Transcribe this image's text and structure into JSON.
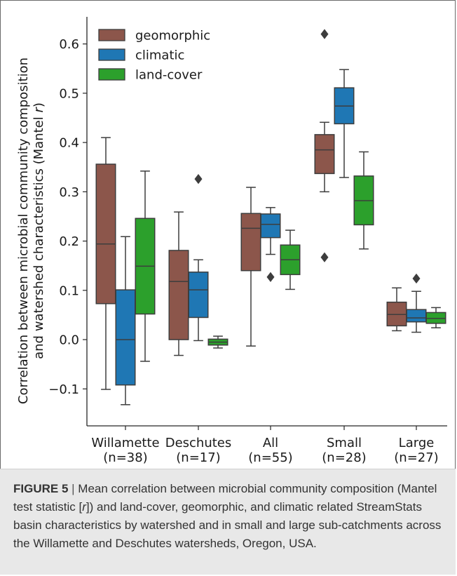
{
  "chart_data": {
    "type": "box",
    "ylabel_line1": "Correlation between microbial community composition",
    "ylabel_line2_prefix": "and watershed characteristics (Mantel ",
    "ylabel_line2_var": "r",
    "ylabel_line2_suffix": ")",
    "ylim": [
      -0.175,
      0.655
    ],
    "yticks": [
      -0.1,
      0.0,
      0.1,
      0.2,
      0.3,
      0.4,
      0.5,
      0.6
    ],
    "ytick_labels": [
      "−0.1",
      "0.0",
      "0.1",
      "0.2",
      "0.3",
      "0.4",
      "0.5",
      "0.6"
    ],
    "categories": [
      "Willamette",
      "Deschutes",
      "All",
      "Small",
      "Large"
    ],
    "category_counts": [
      "(n=38)",
      "(n=17)",
      "(n=55)",
      "(n=28)",
      "(n=27)"
    ],
    "legend_position": "top-left",
    "series": [
      {
        "name": "geomorphic",
        "color": "#8c564b",
        "boxes": [
          {
            "whislo": -0.101,
            "q1": 0.073,
            "med": 0.194,
            "q3": 0.356,
            "whishi": 0.41,
            "fliers": []
          },
          {
            "whislo": -0.032,
            "q1": 0.0,
            "med": 0.118,
            "q3": 0.181,
            "whishi": 0.259,
            "fliers": []
          },
          {
            "whislo": -0.013,
            "q1": 0.14,
            "med": 0.226,
            "q3": 0.256,
            "whishi": 0.309,
            "fliers": []
          },
          {
            "whislo": 0.3,
            "q1": 0.337,
            "med": 0.385,
            "q3": 0.416,
            "whishi": 0.441,
            "fliers": [
              0.62,
              0.167
            ]
          },
          {
            "whislo": 0.018,
            "q1": 0.028,
            "med": 0.051,
            "q3": 0.076,
            "whishi": 0.105,
            "fliers": []
          }
        ]
      },
      {
        "name": "climatic",
        "color": "#1f77b4",
        "boxes": [
          {
            "whislo": -0.132,
            "q1": -0.092,
            "med": 0.0,
            "q3": 0.101,
            "whishi": 0.209,
            "fliers": []
          },
          {
            "whislo": -0.002,
            "q1": 0.045,
            "med": 0.101,
            "q3": 0.137,
            "whishi": 0.162,
            "fliers": [
              0.326
            ]
          },
          {
            "whislo": 0.173,
            "q1": 0.207,
            "med": 0.234,
            "q3": 0.255,
            "whishi": 0.268,
            "fliers": [
              0.127
            ]
          },
          {
            "whislo": 0.329,
            "q1": 0.438,
            "med": 0.474,
            "q3": 0.511,
            "whishi": 0.548,
            "fliers": []
          },
          {
            "whislo": 0.015,
            "q1": 0.036,
            "med": 0.044,
            "q3": 0.061,
            "whishi": 0.098,
            "fliers": [
              0.124
            ]
          }
        ]
      },
      {
        "name": "land-cover",
        "color": "#2ca02c",
        "boxes": [
          {
            "whislo": -0.044,
            "q1": 0.052,
            "med": 0.149,
            "q3": 0.246,
            "whishi": 0.342,
            "fliers": []
          },
          {
            "whislo": -0.017,
            "q1": -0.011,
            "med": -0.005,
            "q3": 0.001,
            "whishi": 0.007,
            "fliers": []
          },
          {
            "whislo": 0.102,
            "q1": 0.132,
            "med": 0.162,
            "q3": 0.192,
            "whishi": 0.222,
            "fliers": []
          },
          {
            "whislo": 0.184,
            "q1": 0.233,
            "med": 0.282,
            "q3": 0.332,
            "whishi": 0.381,
            "fliers": []
          },
          {
            "whislo": 0.024,
            "q1": 0.033,
            "med": 0.043,
            "q3": 0.055,
            "whishi": 0.065,
            "fliers": []
          }
        ]
      }
    ]
  },
  "caption": {
    "label": "FIGURE 5",
    "separator": " | ",
    "part1": "Mean correlation between microbial community composition (Mantel test statistic [",
    "italic_var": "r",
    "part2": "]) and land-cover, geomorphic, and climatic related StreamStats basin characteristics by watershed and in small and large sub-catchments across the Willamette and Deschutes watersheds, Oregon, USA."
  }
}
